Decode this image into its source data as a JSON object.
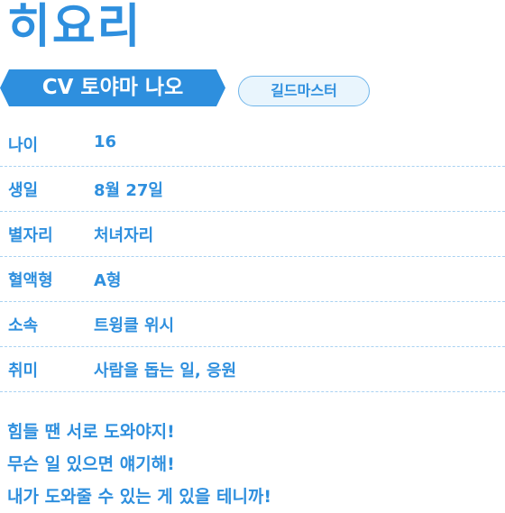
{
  "profile": {
    "name": "히요리",
    "cv": "CV 토야마 나오",
    "role_badge": "길드마스터"
  },
  "info_rows": [
    {
      "label": "나이",
      "value": "16"
    },
    {
      "label": "생일",
      "value": "8월 27일"
    },
    {
      "label": "별자리",
      "value": "처녀자리"
    },
    {
      "label": "혈액형",
      "value": "A형"
    },
    {
      "label": "소속",
      "value": "트윙클 위시"
    },
    {
      "label": "취미",
      "value": "사람을 돕는 일, 응원"
    }
  ],
  "quote": {
    "line1": "힘들 땐 서로 도와야지!",
    "line2": "무슨 일 있으면 얘기해!",
    "line3": "내가 도와줄 수 있는 게 있을 테니까!"
  },
  "colors": {
    "accent": "#2e8fde",
    "badge_bg": "#e9f5fd",
    "divider": "#a9d2f2"
  }
}
